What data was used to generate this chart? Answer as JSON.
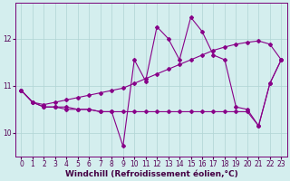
{
  "xlabel": "Windchill (Refroidissement éolien,°C)",
  "x_data": [
    0,
    1,
    2,
    3,
    4,
    5,
    6,
    7,
    8,
    9,
    10,
    11,
    12,
    13,
    14,
    15,
    16,
    17,
    18,
    19,
    20,
    21,
    22,
    23
  ],
  "y_main": [
    10.9,
    10.65,
    10.55,
    10.55,
    10.55,
    10.5,
    10.5,
    10.45,
    10.45,
    9.72,
    11.55,
    11.1,
    12.25,
    12.0,
    11.55,
    12.45,
    12.15,
    11.65,
    11.55,
    10.55,
    10.5,
    10.15,
    11.05,
    11.55
  ],
  "y_upper": [
    10.9,
    10.65,
    10.6,
    10.65,
    10.7,
    10.75,
    10.8,
    10.85,
    10.9,
    10.95,
    11.05,
    11.15,
    11.25,
    11.35,
    11.45,
    11.55,
    11.65,
    11.75,
    11.82,
    11.88,
    11.92,
    11.95,
    11.88,
    11.55
  ],
  "y_lower": [
    10.9,
    10.65,
    10.55,
    10.55,
    10.5,
    10.5,
    10.5,
    10.45,
    10.45,
    10.45,
    10.45,
    10.45,
    10.45,
    10.45,
    10.45,
    10.45,
    10.45,
    10.45,
    10.45,
    10.45,
    10.45,
    10.15,
    11.05,
    11.55
  ],
  "line_color": "#880088",
  "marker": "D",
  "markersize": 2.0,
  "bg_color": "#d4eeee",
  "grid_color": "#b0d4d4",
  "ylim": [
    9.5,
    12.75
  ],
  "xlim": [
    -0.5,
    23.5
  ],
  "yticks": [
    10,
    11,
    12
  ],
  "xticks": [
    0,
    1,
    2,
    3,
    4,
    5,
    6,
    7,
    8,
    9,
    10,
    11,
    12,
    13,
    14,
    15,
    16,
    17,
    18,
    19,
    20,
    21,
    22,
    23
  ],
  "tick_fontsize": 5.5,
  "label_fontsize": 6.5,
  "linewidth": 0.8
}
